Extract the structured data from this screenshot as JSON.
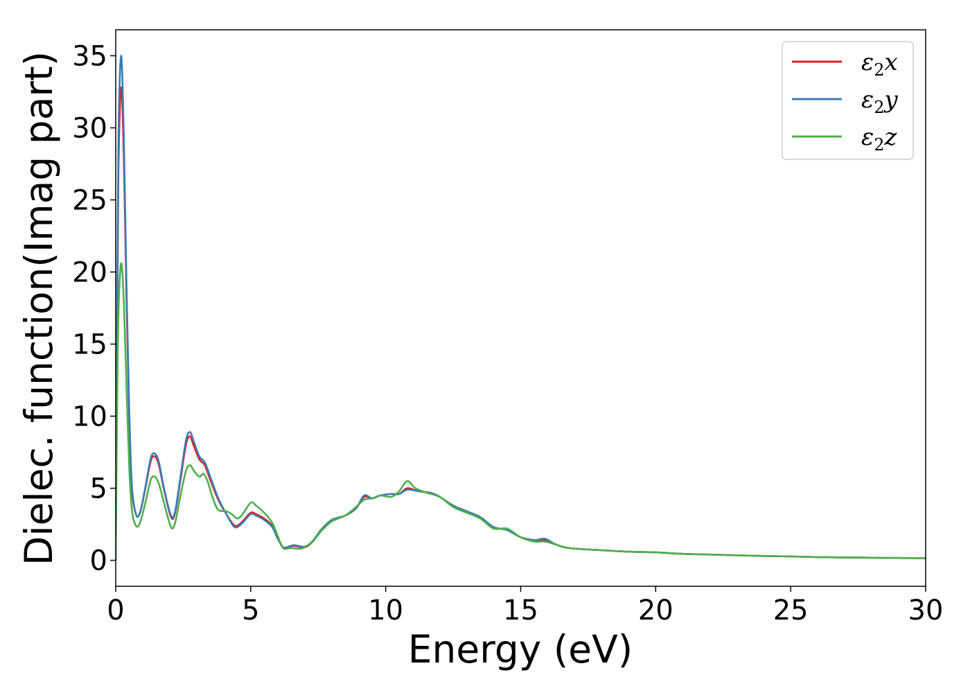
{
  "chart_data": {
    "type": "line",
    "xlabel": "Energy (eV)",
    "ylabel": "Dielec. function(Imag part)",
    "xlim": [
      0,
      30
    ],
    "ylim": [
      -1.8,
      36.8
    ],
    "xticks": [
      0,
      5,
      10,
      15,
      20,
      25,
      30
    ],
    "yticks": [
      0,
      5,
      10,
      15,
      20,
      25,
      30,
      35
    ],
    "grid": false,
    "legend": "top-right",
    "series": [
      {
        "name": "ε2x",
        "legend": {
          "sym": "ε",
          "sub": "2",
          "comp": "x"
        },
        "color": "#e41a1c",
        "points": [
          [
            0,
            0
          ],
          [
            0.05,
            15
          ],
          [
            0.1,
            27
          ],
          [
            0.2,
            32.8
          ],
          [
            0.3,
            28
          ],
          [
            0.4,
            18
          ],
          [
            0.5,
            10
          ],
          [
            0.6,
            5
          ],
          [
            0.75,
            3.2
          ],
          [
            0.9,
            3.3
          ],
          [
            1.1,
            5
          ],
          [
            1.3,
            6.9
          ],
          [
            1.45,
            7.2
          ],
          [
            1.6,
            6.6
          ],
          [
            1.8,
            4.8
          ],
          [
            2.05,
            3
          ],
          [
            2.2,
            3.3
          ],
          [
            2.4,
            5.6
          ],
          [
            2.6,
            8
          ],
          [
            2.75,
            8.6
          ],
          [
            2.9,
            7.9
          ],
          [
            3.1,
            7
          ],
          [
            3.3,
            6.6
          ],
          [
            3.5,
            5.6
          ],
          [
            3.8,
            4.2
          ],
          [
            4.1,
            3.2
          ],
          [
            4.35,
            2.5
          ],
          [
            4.5,
            2.4
          ],
          [
            4.7,
            2.7
          ],
          [
            5.0,
            3.3
          ],
          [
            5.2,
            3.2
          ],
          [
            5.5,
            2.9
          ],
          [
            5.8,
            2.4
          ],
          [
            6.0,
            1.6
          ],
          [
            6.2,
            0.9
          ],
          [
            6.4,
            0.9
          ],
          [
            6.6,
            1.0
          ],
          [
            7.0,
            0.9
          ],
          [
            7.3,
            1.3
          ],
          [
            7.6,
            2.1
          ],
          [
            8.0,
            2.8
          ],
          [
            8.5,
            3.1
          ],
          [
            8.9,
            3.6
          ],
          [
            9.2,
            4.4
          ],
          [
            9.5,
            4.3
          ],
          [
            9.8,
            4.5
          ],
          [
            10.2,
            4.6
          ],
          [
            10.5,
            4.6
          ],
          [
            10.8,
            5.0
          ],
          [
            11.2,
            4.8
          ],
          [
            11.8,
            4.6
          ],
          [
            12.5,
            3.8
          ],
          [
            13.0,
            3.4
          ],
          [
            13.5,
            3.0
          ],
          [
            14.0,
            2.3
          ],
          [
            14.5,
            2.1
          ],
          [
            15.0,
            1.6
          ],
          [
            15.5,
            1.4
          ],
          [
            15.9,
            1.4
          ],
          [
            16.3,
            1.1
          ],
          [
            16.8,
            0.85
          ],
          [
            18,
            0.7
          ],
          [
            19,
            0.6
          ],
          [
            20,
            0.55
          ],
          [
            21,
            0.45
          ],
          [
            22,
            0.4
          ],
          [
            23,
            0.35
          ],
          [
            24,
            0.3
          ],
          [
            25,
            0.27
          ],
          [
            26,
            0.22
          ],
          [
            27,
            0.2
          ],
          [
            28,
            0.18
          ],
          [
            29,
            0.16
          ],
          [
            30,
            0.15
          ]
        ]
      },
      {
        "name": "ε2y",
        "legend": {
          "sym": "ε",
          "sub": "2",
          "comp": "y"
        },
        "color": "#377eb8",
        "points": [
          [
            0,
            0
          ],
          [
            0.05,
            16
          ],
          [
            0.1,
            29
          ],
          [
            0.2,
            35
          ],
          [
            0.3,
            29.5
          ],
          [
            0.4,
            19
          ],
          [
            0.5,
            10.5
          ],
          [
            0.6,
            5.2
          ],
          [
            0.75,
            3.2
          ],
          [
            0.9,
            3.3
          ],
          [
            1.1,
            5.1
          ],
          [
            1.3,
            7.1
          ],
          [
            1.45,
            7.4
          ],
          [
            1.6,
            6.8
          ],
          [
            1.8,
            4.9
          ],
          [
            2.05,
            3.1
          ],
          [
            2.2,
            3.4
          ],
          [
            2.4,
            5.8
          ],
          [
            2.6,
            8.3
          ],
          [
            2.75,
            8.9
          ],
          [
            2.9,
            8.2
          ],
          [
            3.1,
            7.2
          ],
          [
            3.3,
            6.8
          ],
          [
            3.5,
            5.8
          ],
          [
            3.8,
            4.3
          ],
          [
            4.1,
            3.2
          ],
          [
            4.35,
            2.4
          ],
          [
            4.5,
            2.3
          ],
          [
            4.7,
            2.6
          ],
          [
            5.0,
            3.2
          ],
          [
            5.2,
            3.1
          ],
          [
            5.5,
            2.8
          ],
          [
            5.8,
            2.3
          ],
          [
            6.0,
            1.5
          ],
          [
            6.2,
            0.9
          ],
          [
            6.4,
            0.95
          ],
          [
            6.6,
            1.05
          ],
          [
            7.0,
            0.95
          ],
          [
            7.3,
            1.35
          ],
          [
            7.6,
            2.1
          ],
          [
            8.0,
            2.8
          ],
          [
            8.5,
            3.1
          ],
          [
            8.9,
            3.6
          ],
          [
            9.2,
            4.5
          ],
          [
            9.5,
            4.3
          ],
          [
            9.8,
            4.5
          ],
          [
            10.2,
            4.6
          ],
          [
            10.5,
            4.6
          ],
          [
            10.8,
            4.9
          ],
          [
            11.2,
            4.8
          ],
          [
            11.8,
            4.6
          ],
          [
            12.5,
            3.8
          ],
          [
            13.0,
            3.4
          ],
          [
            13.5,
            3.0
          ],
          [
            14.0,
            2.3
          ],
          [
            14.5,
            2.1
          ],
          [
            15.0,
            1.6
          ],
          [
            15.5,
            1.4
          ],
          [
            15.9,
            1.5
          ],
          [
            16.3,
            1.1
          ],
          [
            16.8,
            0.85
          ],
          [
            18,
            0.7
          ],
          [
            19,
            0.6
          ],
          [
            20,
            0.55
          ],
          [
            21,
            0.45
          ],
          [
            22,
            0.4
          ],
          [
            23,
            0.35
          ],
          [
            24,
            0.3
          ],
          [
            25,
            0.27
          ],
          [
            26,
            0.22
          ],
          [
            27,
            0.2
          ],
          [
            28,
            0.18
          ],
          [
            29,
            0.16
          ],
          [
            30,
            0.15
          ]
        ]
      },
      {
        "name": "ε2z",
        "legend": {
          "sym": "ε",
          "sub": "2",
          "comp": "z"
        },
        "color": "#4daf4a",
        "points": [
          [
            0,
            0
          ],
          [
            0.05,
            10
          ],
          [
            0.1,
            17
          ],
          [
            0.2,
            20.6
          ],
          [
            0.3,
            18
          ],
          [
            0.4,
            12
          ],
          [
            0.5,
            6.5
          ],
          [
            0.6,
            3.5
          ],
          [
            0.75,
            2.4
          ],
          [
            0.9,
            2.6
          ],
          [
            1.1,
            4
          ],
          [
            1.3,
            5.6
          ],
          [
            1.45,
            5.8
          ],
          [
            1.6,
            5.3
          ],
          [
            1.8,
            3.9
          ],
          [
            2.05,
            2.3
          ],
          [
            2.2,
            2.6
          ],
          [
            2.4,
            4.5
          ],
          [
            2.6,
            6.2
          ],
          [
            2.75,
            6.6
          ],
          [
            2.9,
            6.2
          ],
          [
            3.1,
            5.8
          ],
          [
            3.25,
            6.0
          ],
          [
            3.4,
            5.5
          ],
          [
            3.6,
            4.3
          ],
          [
            3.8,
            3.5
          ],
          [
            4.1,
            3.4
          ],
          [
            4.3,
            3.2
          ],
          [
            4.5,
            2.9
          ],
          [
            4.7,
            3.2
          ],
          [
            5.0,
            4.0
          ],
          [
            5.2,
            3.8
          ],
          [
            5.5,
            3.3
          ],
          [
            5.8,
            2.6
          ],
          [
            6.0,
            1.7
          ],
          [
            6.2,
            0.85
          ],
          [
            6.5,
            0.85
          ],
          [
            6.8,
            0.8
          ],
          [
            7.0,
            0.9
          ],
          [
            7.3,
            1.3
          ],
          [
            7.6,
            2.0
          ],
          [
            8.0,
            2.7
          ],
          [
            8.5,
            3.1
          ],
          [
            8.9,
            3.7
          ],
          [
            9.2,
            4.2
          ],
          [
            9.5,
            4.3
          ],
          [
            9.8,
            4.5
          ],
          [
            10.2,
            4.4
          ],
          [
            10.5,
            4.8
          ],
          [
            10.8,
            5.5
          ],
          [
            11.1,
            5.0
          ],
          [
            11.5,
            4.7
          ],
          [
            12.0,
            4.4
          ],
          [
            12.5,
            3.7
          ],
          [
            13.0,
            3.3
          ],
          [
            13.5,
            2.9
          ],
          [
            14.0,
            2.2
          ],
          [
            14.5,
            2.2
          ],
          [
            15.0,
            1.6
          ],
          [
            15.5,
            1.3
          ],
          [
            15.9,
            1.3
          ],
          [
            16.3,
            1.1
          ],
          [
            16.8,
            0.85
          ],
          [
            18,
            0.7
          ],
          [
            19,
            0.6
          ],
          [
            20,
            0.55
          ],
          [
            21,
            0.45
          ],
          [
            22,
            0.4
          ],
          [
            23,
            0.35
          ],
          [
            24,
            0.3
          ],
          [
            25,
            0.27
          ],
          [
            26,
            0.22
          ],
          [
            27,
            0.2
          ],
          [
            28,
            0.18
          ],
          [
            29,
            0.16
          ],
          [
            30,
            0.15
          ]
        ]
      }
    ]
  }
}
